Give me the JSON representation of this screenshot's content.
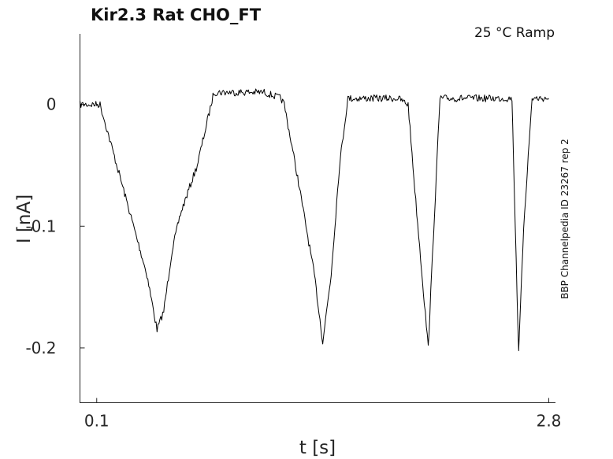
{
  "chart_data": {
    "type": "line",
    "title": "Kir2.3  Rat  CHO_FT",
    "condition": "25 °C  Ramp",
    "side_label": "BBP Channelpedia ID 23267 rep 2",
    "xlabel": "t [s]",
    "ylabel": "I [nA]",
    "xticks": [
      {
        "value": 0.1,
        "label": "0.1"
      },
      {
        "value": 2.8,
        "label": "2.8"
      }
    ],
    "yticks": [
      {
        "value": 0,
        "label": "0"
      },
      {
        "value": -0.1,
        "label": "-0.1"
      },
      {
        "value": -0.2,
        "label": "-0.2"
      }
    ],
    "xlim": [
      0.0,
      2.84
    ],
    "ylim": [
      -0.245,
      0.058
    ],
    "grid": false,
    "series": [
      {
        "x": [
          0.0,
          0.08,
          0.1,
          0.12,
          0.2,
          0.3,
          0.4,
          0.46,
          0.5,
          0.55,
          0.6,
          0.7,
          0.8,
          0.85,
          0.9,
          1.0,
          1.1,
          1.2,
          1.22,
          1.3,
          1.4,
          1.45,
          1.5,
          1.55,
          1.6,
          1.7,
          1.8,
          1.9,
          1.96,
          2.0,
          2.08,
          2.1,
          2.15,
          2.2,
          2.3,
          2.4,
          2.5,
          2.58,
          2.6,
          2.62,
          2.65,
          2.7,
          2.8
        ],
        "y": [
          0.0,
          0.0,
          0.0,
          0.0,
          -0.04,
          -0.09,
          -0.14,
          -0.185,
          -0.17,
          -0.12,
          -0.09,
          -0.05,
          0.01,
          0.01,
          0.01,
          0.01,
          0.01,
          0.005,
          0.0,
          -0.06,
          -0.14,
          -0.195,
          -0.14,
          -0.05,
          0.005,
          0.005,
          0.005,
          0.005,
          0.0,
          -0.07,
          -0.2,
          -0.14,
          0.005,
          0.005,
          0.005,
          0.005,
          0.005,
          0.005,
          -0.1,
          -0.205,
          -0.1,
          0.005,
          0.005
        ]
      }
    ]
  }
}
